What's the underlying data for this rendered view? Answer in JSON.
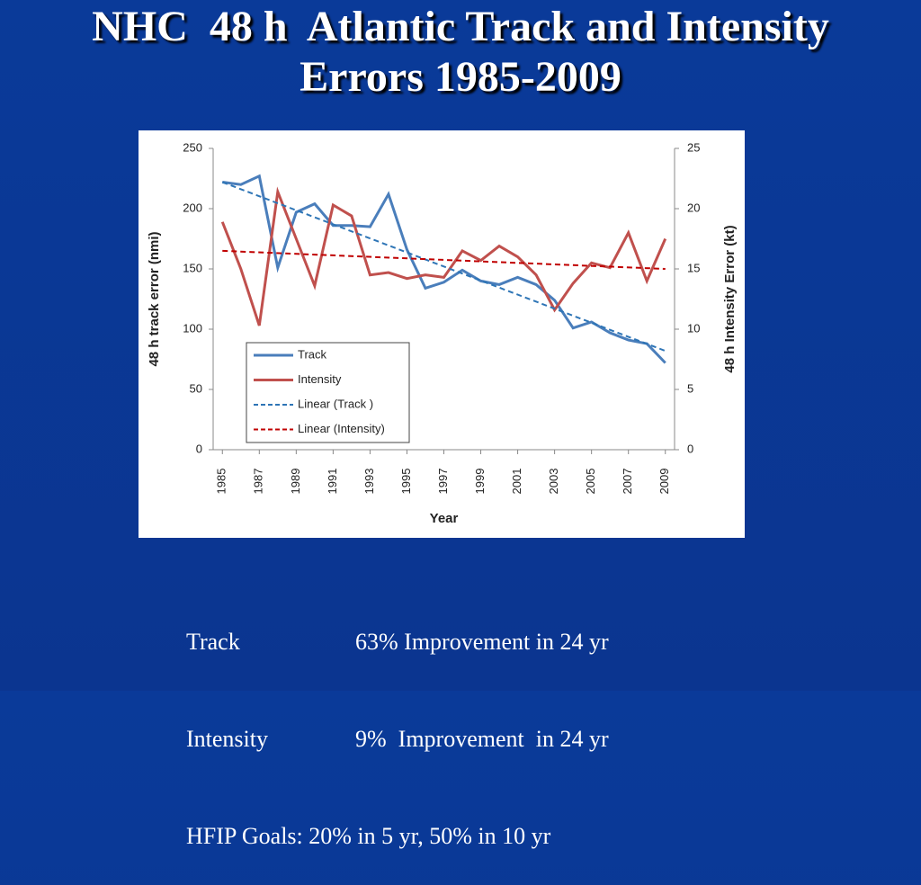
{
  "title": "NHC  48 h  Atlantic Track and Intensity Errors 1985-2009",
  "chart_data": {
    "type": "line",
    "xlabel": "Year",
    "ylabel": "48 h track error (nmi)",
    "y2label": "48 h Intensity Error (kt)",
    "x": [
      1985,
      1986,
      1987,
      1988,
      1989,
      1990,
      1991,
      1992,
      1993,
      1994,
      1995,
      1996,
      1997,
      1998,
      1999,
      2000,
      2001,
      2002,
      2003,
      2004,
      2005,
      2006,
      2007,
      2008,
      2009
    ],
    "xlim": [
      1984.5,
      2009.5
    ],
    "xticks": [
      1985,
      1987,
      1989,
      1991,
      1993,
      1995,
      1997,
      1999,
      2001,
      2003,
      2005,
      2007,
      2009
    ],
    "ylim": [
      0,
      250
    ],
    "yticks": [
      0,
      50,
      100,
      150,
      200,
      250
    ],
    "y2lim": [
      0,
      25
    ],
    "y2ticks": [
      0,
      5,
      10,
      15,
      20,
      25
    ],
    "legend": "lower-left",
    "series": [
      {
        "name": "Track",
        "color": "#4a7ebb",
        "dashed": false,
        "values": [
          222,
          220,
          227,
          151,
          197,
          204,
          186,
          186,
          185,
          212,
          166,
          134,
          139,
          149,
          140,
          137,
          143,
          137,
          124,
          101,
          106,
          97,
          91,
          88,
          72
        ]
      },
      {
        "name": "Intensity",
        "color": "#c0504d",
        "dashed": false,
        "axis": "y2",
        "values": [
          18.9,
          15,
          10.3,
          21.4,
          17.5,
          13.6,
          20.3,
          19.4,
          14.5,
          14.7,
          14.2,
          14.5,
          14.3,
          16.5,
          15.7,
          16.9,
          16,
          14.5,
          11.6,
          13.8,
          15.5,
          15.1,
          18,
          14,
          17.5
        ]
      },
      {
        "name": "Linear (Track )",
        "color": "#2e75b6",
        "dashed": true,
        "x": [
          1985,
          2009
        ],
        "values": [
          222,
          82
        ]
      },
      {
        "name": "Linear (Intensity)",
        "color": "#c00000",
        "dashed": true,
        "axis": "y2",
        "x": [
          1985,
          2009
        ],
        "values": [
          16.5,
          15
        ]
      }
    ]
  },
  "notes": [
    {
      "label": "Track",
      "text": "63% Improvement in 24 yr"
    },
    {
      "label": "Intensity",
      "text": "9%  Improvement  in 24 yr"
    },
    {
      "text": "HFIP Goals: 20% in 5 yr, 50% in 10 yr"
    }
  ]
}
